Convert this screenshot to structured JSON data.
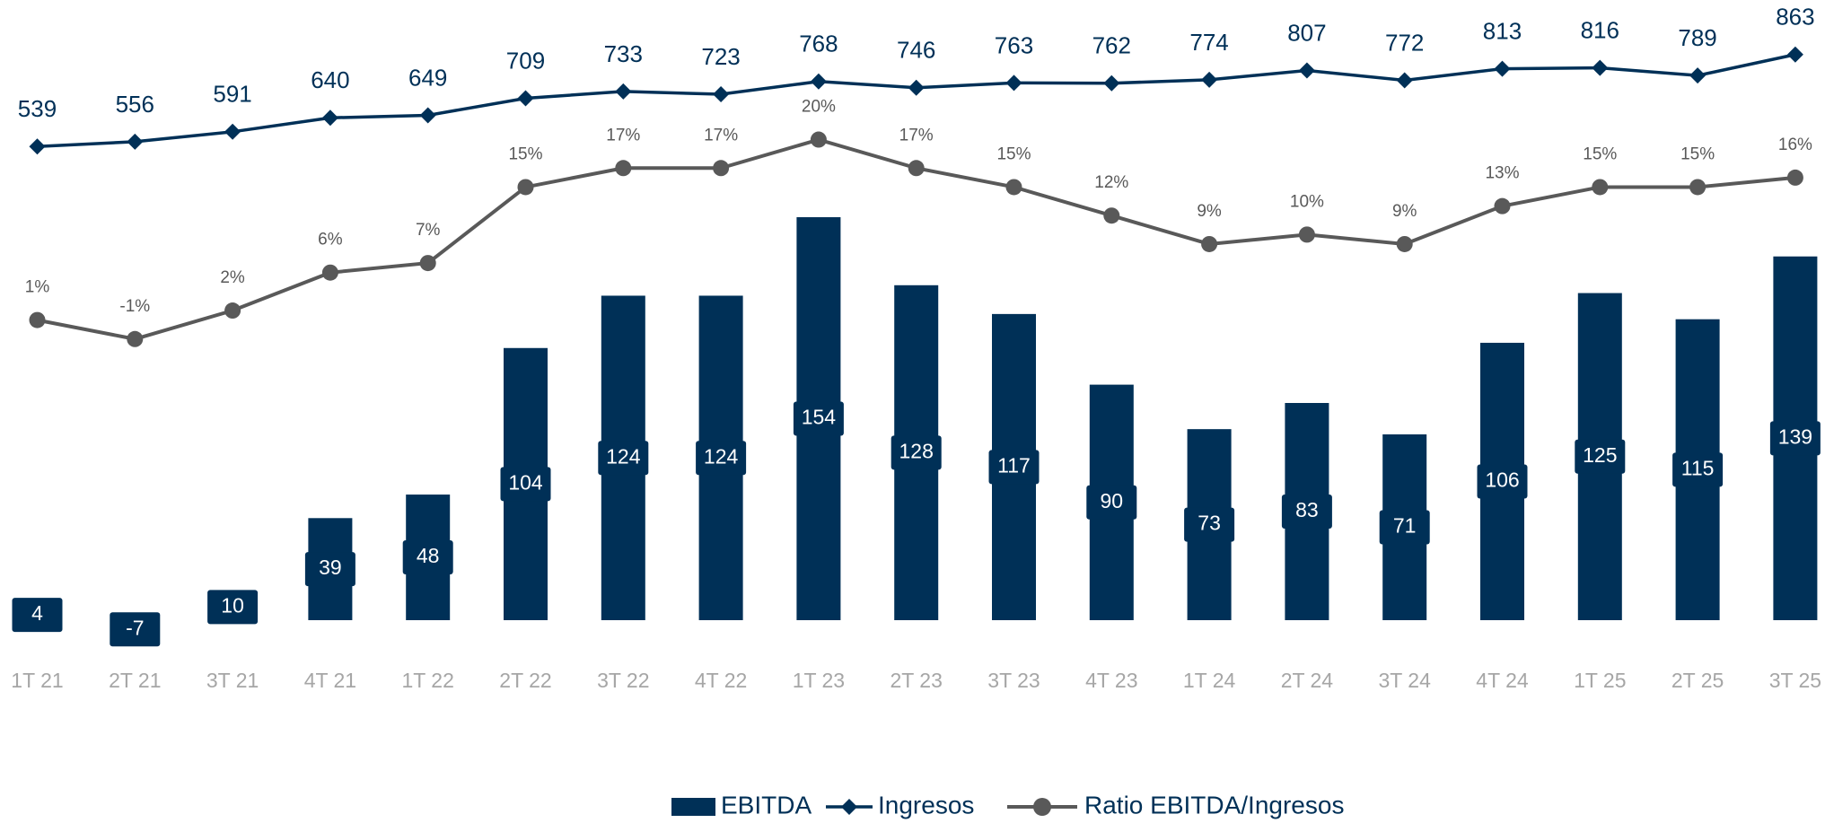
{
  "chart_data": {
    "type": "bar_line",
    "categories": [
      "1T 21",
      "2T 21",
      "3T 21",
      "4T 21",
      "1T 22",
      "2T 22",
      "3T 22",
      "4T 22",
      "1T 23",
      "2T 23",
      "3T 23",
      "4T 23",
      "1T 24",
      "2T 24",
      "3T 24",
      "4T 24",
      "1T 25",
      "2T 25",
      "3T 25"
    ],
    "series": [
      {
        "name": "EBITDA",
        "type": "bar",
        "color": "#003057",
        "axis": "y",
        "values": [
          4,
          -7,
          10,
          39,
          48,
          104,
          124,
          124,
          154,
          128,
          117,
          90,
          73,
          83,
          71,
          106,
          125,
          115,
          139
        ]
      },
      {
        "name": "Ingresos",
        "type": "line",
        "marker": "diamond",
        "color": "#003057",
        "axis": "y2",
        "values": [
          539,
          556,
          591,
          640,
          649,
          709,
          733,
          723,
          768,
          746,
          763,
          762,
          774,
          807,
          772,
          813,
          816,
          789,
          863
        ]
      },
      {
        "name": "Ratio EBITDA/Ingresos",
        "type": "line",
        "marker": "circle",
        "color": "#595959",
        "axis": "y3",
        "values": [
          1,
          -1,
          2,
          6,
          7,
          15,
          17,
          17,
          20,
          17,
          15,
          12,
          9,
          10,
          9,
          13,
          15,
          15,
          16
        ],
        "value_labels": [
          "1%",
          "-1%",
          "2%",
          "6%",
          "7%",
          "15%",
          "17%",
          "17%",
          "20%",
          "17%",
          "15%",
          "12%",
          "9%",
          "10%",
          "9%",
          "13%",
          "15%",
          "15%",
          "16%"
        ]
      }
    ],
    "ylim": [
      0,
      237
    ],
    "y2lim": [
      -1129,
      1055
    ],
    "y3lim": [
      -30.6,
      34.7
    ],
    "legend": "bottom"
  }
}
